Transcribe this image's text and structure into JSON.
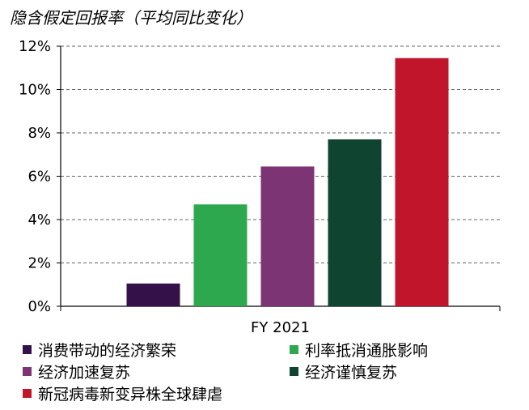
{
  "title": "隐含假定回报率（平均同比变化）",
  "colors": {
    "axis": "#000000",
    "grid": "#666666"
  },
  "chart_data": {
    "type": "bar",
    "categories": [
      "FY 2021"
    ],
    "ylim": [
      0,
      12
    ],
    "yticks": [
      0,
      2,
      4,
      6,
      8,
      10,
      12
    ],
    "ytick_labels": [
      "0%",
      "2%",
      "4%",
      "6%",
      "8%",
      "10%",
      "12%"
    ],
    "grid": "horizontal dashed",
    "legend_position": "bottom",
    "series": [
      {
        "name": "消费带动的经济繁荣",
        "values": [
          1.05
        ],
        "color": "#35114a"
      },
      {
        "name": "利率抵消通胀影响",
        "values": [
          4.7
        ],
        "color": "#2ea84f"
      },
      {
        "name": "经济加速复苏",
        "values": [
          6.45
        ],
        "color": "#7d3474"
      },
      {
        "name": "经济谨慎复苏",
        "values": [
          7.7
        ],
        "color": "#0f4430"
      },
      {
        "name": "新冠病毒新变异株全球肆虐",
        "values": [
          11.45
        ],
        "color": "#c0152b"
      }
    ]
  }
}
